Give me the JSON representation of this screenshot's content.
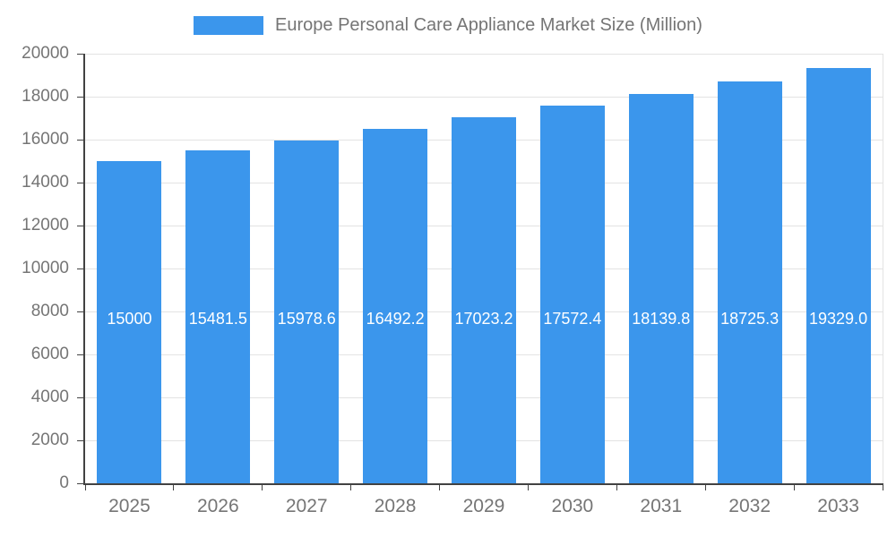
{
  "legend": {
    "series_label": "Europe Personal Care Appliance Market Size (Million)"
  },
  "chart_data": {
    "type": "bar",
    "title": "Europe Personal Care Appliance Market Size (Million)",
    "categories": [
      "2025",
      "2026",
      "2027",
      "2028",
      "2029",
      "2030",
      "2031",
      "2032",
      "2033"
    ],
    "values": [
      15000,
      15481.5,
      15978.6,
      16492.2,
      17023.2,
      17572.4,
      18139.8,
      18725.3,
      19329.0
    ],
    "value_labels": [
      "15000",
      "15481.5",
      "15978.6",
      "16492.2",
      "17023.2",
      "17572.4",
      "18139.8",
      "18725.3",
      "19329.0"
    ],
    "xlabel": "",
    "ylabel": "",
    "ylim": [
      0,
      20000
    ],
    "yticks": [
      0,
      2000,
      4000,
      6000,
      8000,
      10000,
      12000,
      14000,
      16000,
      18000,
      20000
    ],
    "grid": true,
    "legend_position": "top-center",
    "bar_color": "#3b96ec",
    "value_label_color": "#ffffff",
    "axis_text_color": "#757575",
    "gridline_color": "#e3e3e3",
    "axis_line_color": "#424242"
  }
}
